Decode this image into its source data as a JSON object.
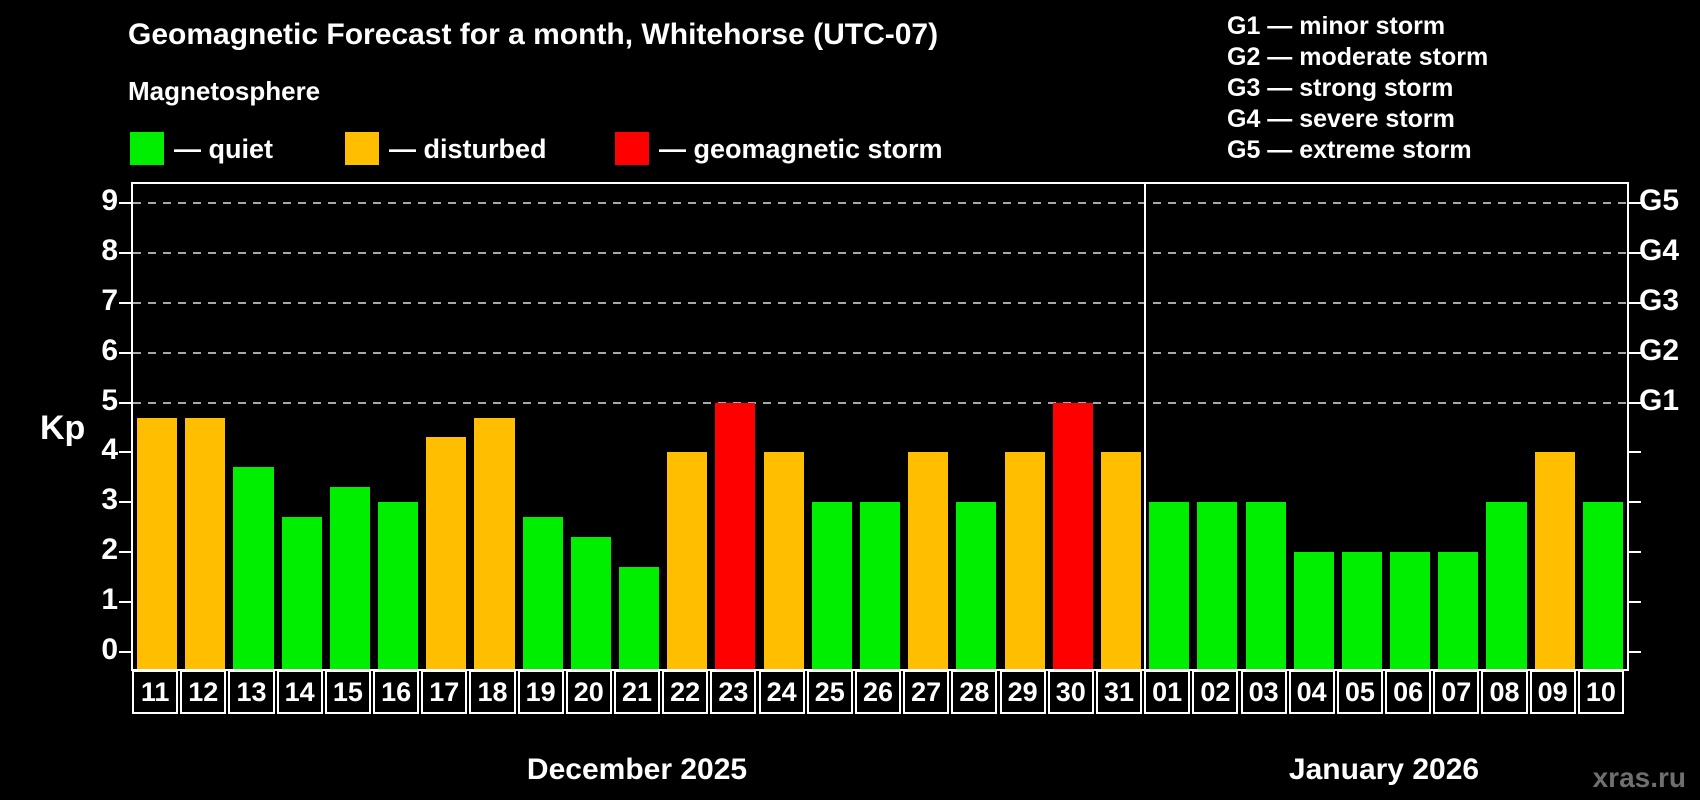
{
  "title": "Geomagnetic Forecast for a month, Whitehorse (UTC-07)",
  "subtitle": "Magnetosphere",
  "legend": {
    "items": [
      {
        "label": "— quiet",
        "status": "quiet"
      },
      {
        "label": "— disturbed",
        "status": "disturbed"
      },
      {
        "label": "— geomagnetic storm",
        "status": "storm"
      }
    ]
  },
  "g_legend": [
    "G1 — minor storm",
    "G2 — moderate storm",
    "G3 — strong storm",
    "G4 — severe storm",
    "G5 — extreme storm"
  ],
  "watermark": "xras.ru",
  "chart_data": {
    "type": "bar",
    "ylabel": "Kp",
    "ylim": [
      -0.35,
      9.35
    ],
    "y_ticks": [
      0,
      1,
      2,
      3,
      4,
      5,
      6,
      7,
      8,
      9
    ],
    "grid_levels": [
      5,
      6,
      7,
      8,
      9
    ],
    "grid_on": true,
    "right_axis": [
      {
        "level": 5,
        "label": "G1"
      },
      {
        "level": 6,
        "label": "G2"
      },
      {
        "level": 7,
        "label": "G3"
      },
      {
        "level": 8,
        "label": "G4"
      },
      {
        "level": 9,
        "label": "G5"
      }
    ],
    "colors": {
      "quiet": "#00ee00",
      "disturbed": "#ffbe00",
      "storm": "#ff0000"
    },
    "months": [
      {
        "label": "December 2025",
        "days": [
          {
            "date": "11",
            "kp": 4.7,
            "status": "disturbed"
          },
          {
            "date": "12",
            "kp": 4.7,
            "status": "disturbed"
          },
          {
            "date": "13",
            "kp": 3.7,
            "status": "quiet"
          },
          {
            "date": "14",
            "kp": 2.7,
            "status": "quiet"
          },
          {
            "date": "15",
            "kp": 3.3,
            "status": "quiet"
          },
          {
            "date": "16",
            "kp": 3.0,
            "status": "quiet"
          },
          {
            "date": "17",
            "kp": 4.3,
            "status": "disturbed"
          },
          {
            "date": "18",
            "kp": 4.7,
            "status": "disturbed"
          },
          {
            "date": "19",
            "kp": 2.7,
            "status": "quiet"
          },
          {
            "date": "20",
            "kp": 2.3,
            "status": "quiet"
          },
          {
            "date": "21",
            "kp": 1.7,
            "status": "quiet"
          },
          {
            "date": "22",
            "kp": 4.0,
            "status": "disturbed"
          },
          {
            "date": "23",
            "kp": 5.0,
            "status": "storm"
          },
          {
            "date": "24",
            "kp": 4.0,
            "status": "disturbed"
          },
          {
            "date": "25",
            "kp": 3.0,
            "status": "quiet"
          },
          {
            "date": "26",
            "kp": 3.0,
            "status": "quiet"
          },
          {
            "date": "27",
            "kp": 4.0,
            "status": "disturbed"
          },
          {
            "date": "28",
            "kp": 3.0,
            "status": "quiet"
          },
          {
            "date": "29",
            "kp": 4.0,
            "status": "disturbed"
          },
          {
            "date": "30",
            "kp": 5.0,
            "status": "storm"
          },
          {
            "date": "31",
            "kp": 4.0,
            "status": "disturbed"
          }
        ]
      },
      {
        "label": "January 2026",
        "days": [
          {
            "date": "01",
            "kp": 3.0,
            "status": "quiet"
          },
          {
            "date": "02",
            "kp": 3.0,
            "status": "quiet"
          },
          {
            "date": "03",
            "kp": 3.0,
            "status": "quiet"
          },
          {
            "date": "04",
            "kp": 2.0,
            "status": "quiet"
          },
          {
            "date": "05",
            "kp": 2.0,
            "status": "quiet"
          },
          {
            "date": "06",
            "kp": 2.0,
            "status": "quiet"
          },
          {
            "date": "07",
            "kp": 2.0,
            "status": "quiet"
          },
          {
            "date": "08",
            "kp": 3.0,
            "status": "quiet"
          },
          {
            "date": "09",
            "kp": 4.0,
            "status": "disturbed"
          },
          {
            "date": "10",
            "kp": 3.0,
            "status": "quiet"
          }
        ]
      }
    ]
  }
}
